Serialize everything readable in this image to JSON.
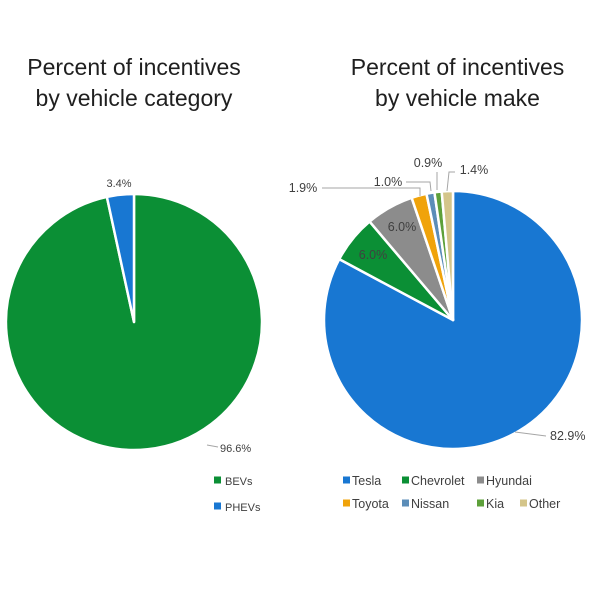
{
  "chart_data": [
    {
      "type": "pie",
      "title_line1": "Percent of incentives",
      "title_line2": "by vehicle category",
      "slices": [
        {
          "label": "BEVs",
          "value": 96.6,
          "display": "96.6%",
          "color": "#0b8f35"
        },
        {
          "label": "PHEVs",
          "value": 3.4,
          "display": "3.4%",
          "color": "#1877d2"
        }
      ],
      "legend_position": "bottom"
    },
    {
      "type": "pie",
      "title_line1": "Percent of incentives",
      "title_line2": "by vehicle make",
      "slices": [
        {
          "label": "Tesla",
          "value": 82.9,
          "display": "82.9%",
          "color": "#1877d2"
        },
        {
          "label": "Chevrolet",
          "value": 6.0,
          "display": "6.0%",
          "color": "#0b8f35"
        },
        {
          "label": "Hyundai",
          "value": 6.0,
          "display": "6.0%",
          "color": "#8c8c8c"
        },
        {
          "label": "Toyota",
          "value": 1.9,
          "display": "1.9%",
          "color": "#f0a30a"
        },
        {
          "label": "Nissan",
          "value": 1.0,
          "display": "1.0%",
          "color": "#5b8db8"
        },
        {
          "label": "Kia",
          "value": 0.9,
          "display": "0.9%",
          "color": "#5da03a"
        },
        {
          "label": "Other",
          "value": 1.4,
          "display": "1.4%",
          "color": "#d4c58a"
        }
      ],
      "legend_position": "bottom"
    }
  ]
}
